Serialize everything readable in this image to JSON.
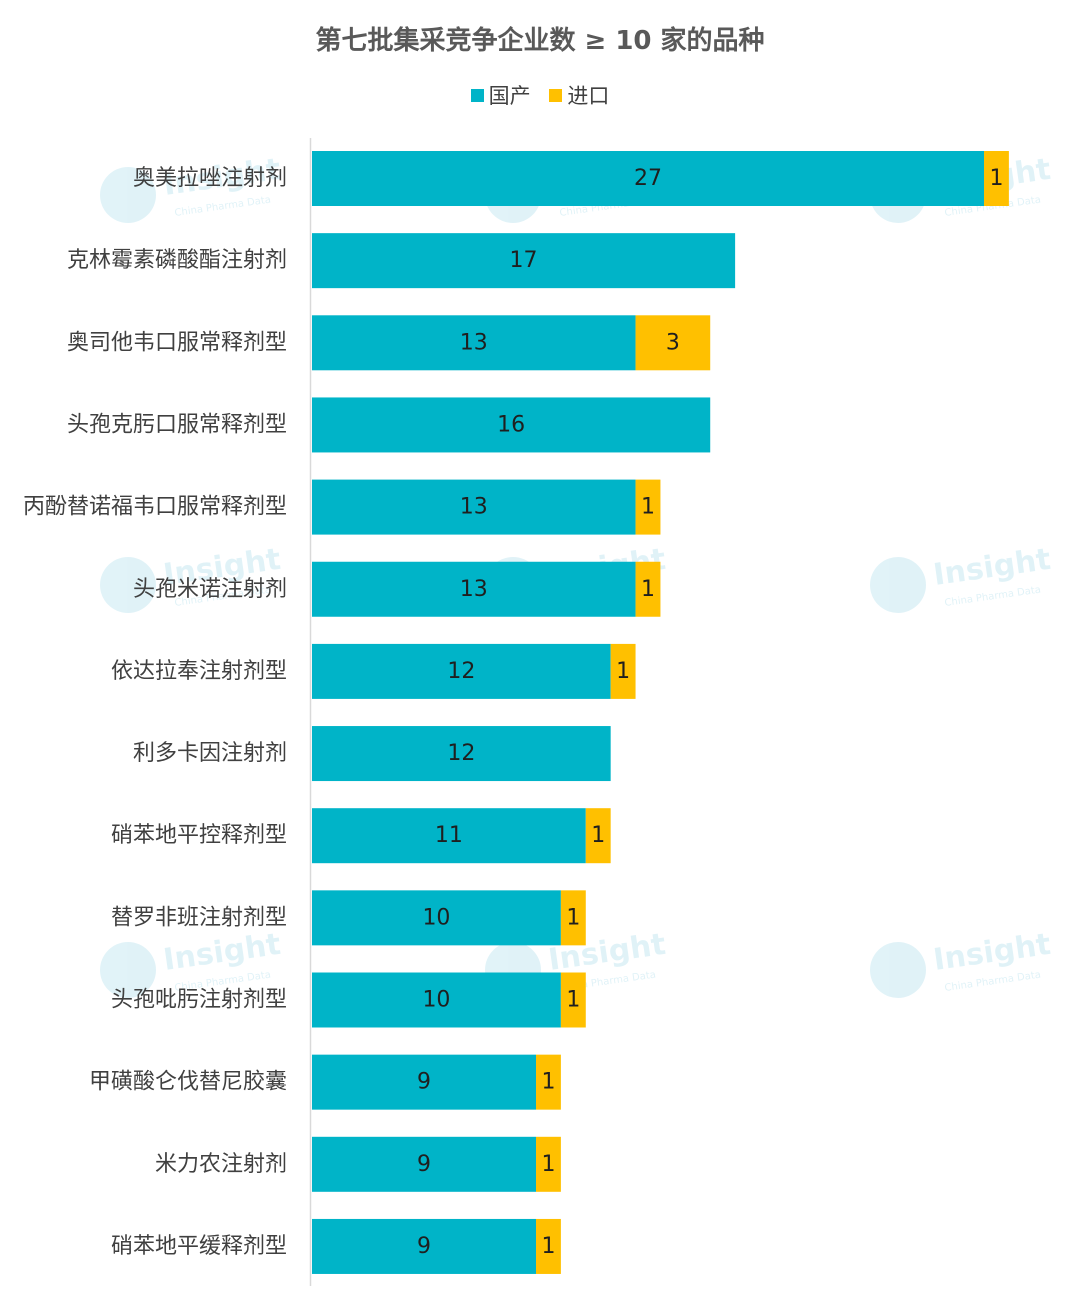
{
  "chart_data": {
    "type": "bar",
    "orientation": "horizontal",
    "stacked": true,
    "title": "第七批集采竞争企业数 ≥ 10 家的品种",
    "legend_position": "top",
    "categories": [
      "奥美拉唑注射剂",
      "克林霉素磷酸酯注射剂",
      "奥司他韦口服常释剂型",
      "头孢克肟口服常释剂型",
      "丙酚替诺福韦口服常释剂型",
      "头孢米诺注射剂",
      "依达拉奉注射剂型",
      "利多卡因注射剂",
      "硝苯地平控释剂型",
      "替罗非班注射剂型",
      "头孢吡肟注射剂型",
      "甲磺酸仑伐替尼胶囊",
      "米力农注射剂",
      "硝苯地平缓释剂型"
    ],
    "series": [
      {
        "name": "国产",
        "color": "#00b4c8",
        "values": [
          27,
          17,
          13,
          16,
          13,
          13,
          12,
          12,
          11,
          10,
          10,
          9,
          9,
          9
        ]
      },
      {
        "name": "进口",
        "color": "#ffc000",
        "values": [
          1,
          null,
          3,
          null,
          1,
          1,
          1,
          null,
          1,
          1,
          1,
          1,
          1,
          1
        ]
      }
    ],
    "xlim": [
      0,
      28
    ],
    "grid": false
  },
  "watermark": {
    "text": "Insight",
    "subtext": "China Pharma Data"
  }
}
